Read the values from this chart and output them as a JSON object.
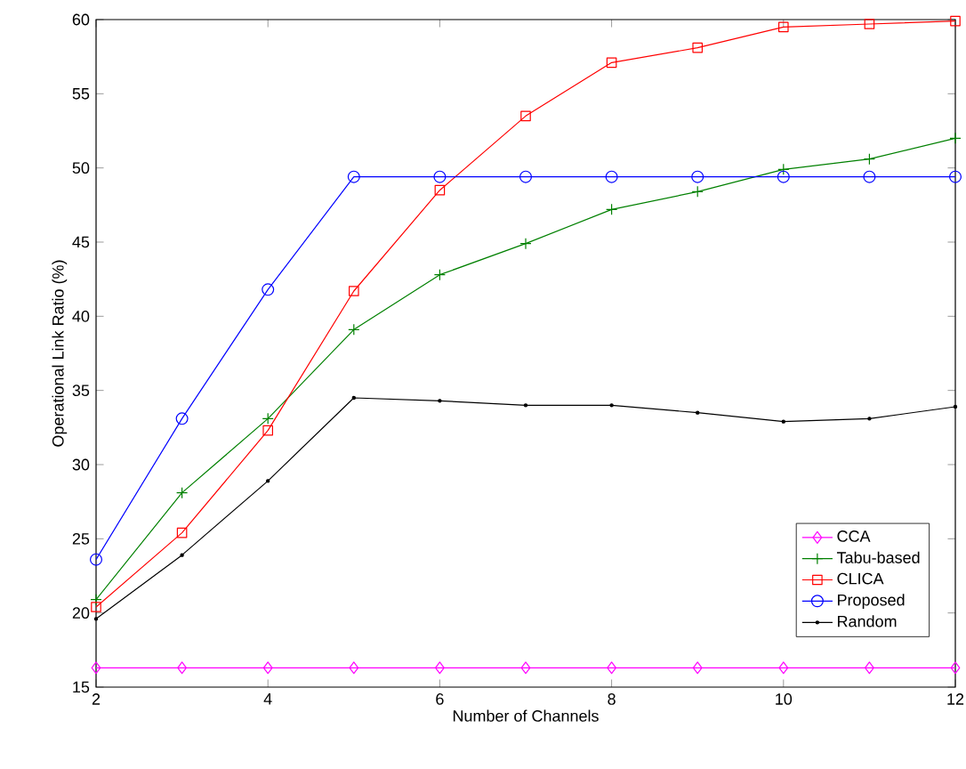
{
  "chart_data": {
    "type": "line",
    "xlabel": "Number of Channels",
    "ylabel": "Operational Link Ratio (%)",
    "x": [
      2,
      3,
      4,
      5,
      6,
      7,
      8,
      9,
      10,
      11,
      12
    ],
    "xlim": [
      2,
      12
    ],
    "xticks": [
      2,
      4,
      6,
      8,
      10,
      12
    ],
    "ylim": [
      15,
      60
    ],
    "yticks": [
      15,
      20,
      25,
      30,
      35,
      40,
      45,
      50,
      55,
      60
    ],
    "legend": "bottom right",
    "grid": false,
    "series": [
      {
        "name": "CCA",
        "color": "#ff00ff",
        "marker": "diamond",
        "values": [
          16.3,
          16.3,
          16.3,
          16.3,
          16.3,
          16.3,
          16.3,
          16.3,
          16.3,
          16.3,
          16.3
        ]
      },
      {
        "name": "Tabu-based",
        "color": "#008000",
        "marker": "cross",
        "values": [
          20.9,
          28.1,
          33.1,
          39.1,
          42.8,
          44.9,
          47.2,
          48.4,
          49.9,
          50.6,
          52.0
        ]
      },
      {
        "name": "CLICA",
        "color": "#ff0000",
        "marker": "square",
        "values": [
          20.4,
          25.4,
          32.3,
          41.7,
          48.5,
          53.5,
          57.1,
          58.1,
          59.5,
          59.7,
          59.9
        ]
      },
      {
        "name": "Proposed",
        "color": "#0000ff",
        "marker": "circle",
        "values": [
          23.6,
          33.1,
          41.8,
          49.4,
          49.4,
          49.4,
          49.4,
          49.4,
          49.4,
          49.4,
          49.4
        ]
      },
      {
        "name": "Random",
        "color": "#000000",
        "marker": "dot",
        "values": [
          19.6,
          23.9,
          28.9,
          34.5,
          34.3,
          34.0,
          34.0,
          33.5,
          32.9,
          33.1,
          33.9
        ]
      }
    ]
  }
}
